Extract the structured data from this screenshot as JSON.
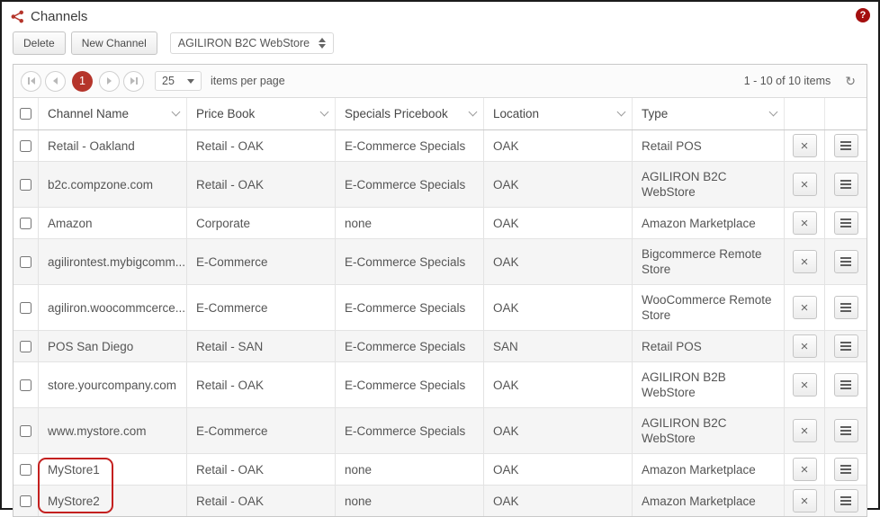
{
  "page": {
    "title": "Channels"
  },
  "icons": {
    "help": "?",
    "refresh": "↻",
    "delete_x": "×"
  },
  "toolbar": {
    "delete_label": "Delete",
    "new_channel_label": "New Channel",
    "channel_select_value": "AGILIRON B2C WebStore"
  },
  "pager": {
    "page": "1",
    "page_size": "25",
    "items_per_page_label": "items per page",
    "range_label": "1 - 10 of 10 items"
  },
  "table": {
    "columns": [
      "Channel Name",
      "Price Book",
      "Specials Pricebook",
      "Location",
      "Type"
    ],
    "rows": [
      {
        "channel_name": "Retail - Oakland",
        "price_book": "Retail - OAK",
        "specials_pricebook": "E-Commerce Specials",
        "location": "OAK",
        "type": "Retail POS",
        "highlighted": false
      },
      {
        "channel_name": "b2c.compzone.com",
        "price_book": "Retail - OAK",
        "specials_pricebook": "E-Commerce Specials",
        "location": "OAK",
        "type": "AGILIRON B2C WebStore",
        "highlighted": false
      },
      {
        "channel_name": "Amazon",
        "price_book": "Corporate",
        "specials_pricebook": "none",
        "location": "OAK",
        "type": "Amazon Marketplace",
        "highlighted": false
      },
      {
        "channel_name": "agilirontest.mybigcomm...",
        "price_book": "E-Commerce",
        "specials_pricebook": "E-Commerce Specials",
        "location": "OAK",
        "type": "Bigcommerce Remote Store",
        "highlighted": false
      },
      {
        "channel_name": "agiliron.woocommcerce...",
        "price_book": "E-Commerce",
        "specials_pricebook": "E-Commerce Specials",
        "location": "OAK",
        "type": "WooCommerce Remote Store",
        "highlighted": false
      },
      {
        "channel_name": "POS San Diego",
        "price_book": "Retail - SAN",
        "specials_pricebook": "E-Commerce Specials",
        "location": "SAN",
        "type": "Retail POS",
        "highlighted": false
      },
      {
        "channel_name": "store.yourcompany.com",
        "price_book": "Retail - OAK",
        "specials_pricebook": "E-Commerce Specials",
        "location": "OAK",
        "type": "AGILIRON B2B WebStore",
        "highlighted": false
      },
      {
        "channel_name": "www.mystore.com",
        "price_book": "E-Commerce",
        "specials_pricebook": "E-Commerce Specials",
        "location": "OAK",
        "type": "AGILIRON B2C WebStore",
        "highlighted": false
      },
      {
        "channel_name": "MyStore1",
        "price_book": "Retail - OAK",
        "specials_pricebook": "none",
        "location": "OAK",
        "type": "Amazon Marketplace",
        "highlighted": true
      },
      {
        "channel_name": "MyStore2",
        "price_book": "Retail - OAK",
        "specials_pricebook": "none",
        "location": "OAK",
        "type": "Amazon Marketplace",
        "highlighted": true
      }
    ]
  },
  "colors": {
    "accent_red": "#b5352b",
    "annotation_red": "#c4201f",
    "help_red": "#a40f0f",
    "alt_row_bg": "#f5f5f5"
  }
}
